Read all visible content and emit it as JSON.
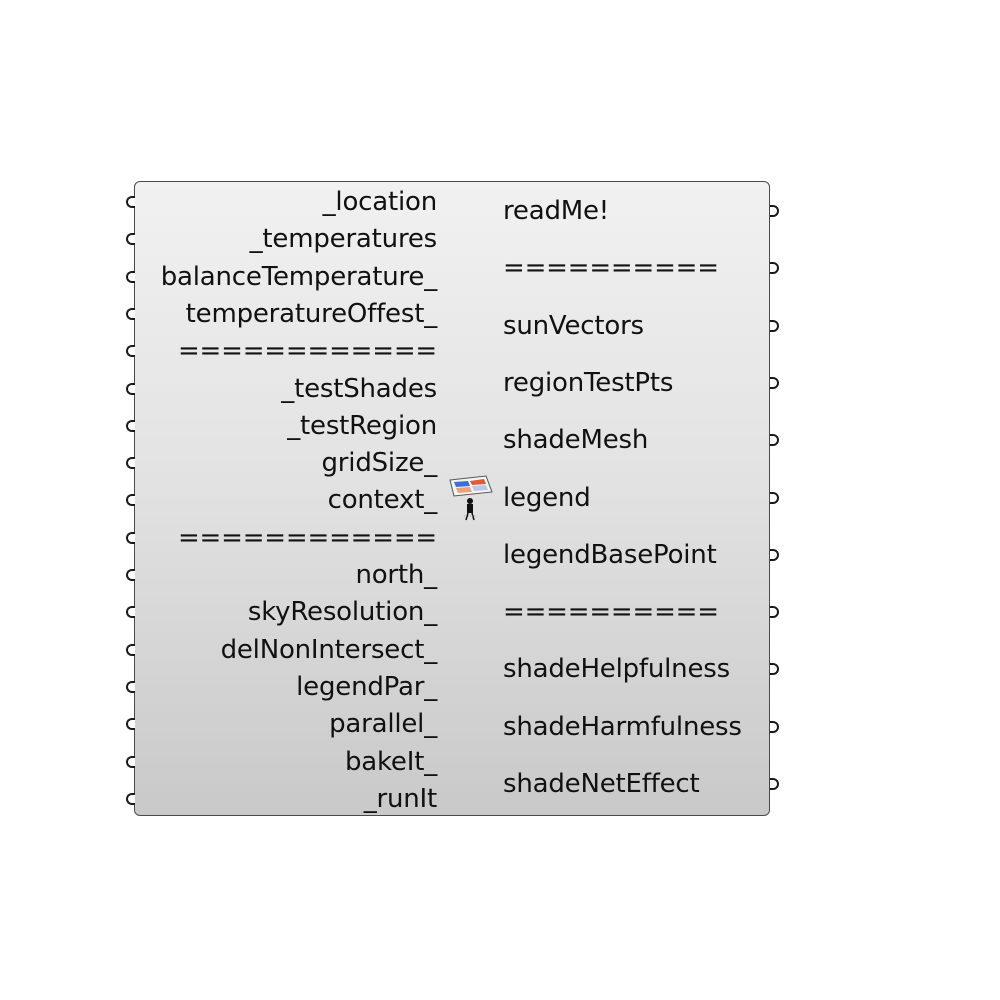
{
  "component": {
    "inputs": [
      {
        "label": "_location"
      },
      {
        "label": "_temperatures"
      },
      {
        "label": "balanceTemperature_"
      },
      {
        "label": "temperatureOffest_"
      },
      {
        "label": "============"
      },
      {
        "label": "_testShades"
      },
      {
        "label": "_testRegion"
      },
      {
        "label": "gridSize_"
      },
      {
        "label": "context_"
      },
      {
        "label": "============"
      },
      {
        "label": "north_"
      },
      {
        "label": "skyResolution_"
      },
      {
        "label": "delNonIntersect_"
      },
      {
        "label": "legendPar_"
      },
      {
        "label": "parallel_"
      },
      {
        "label": "bakeIt_"
      },
      {
        "label": "_runIt"
      }
    ],
    "outputs": [
      {
        "label": "readMe!"
      },
      {
        "label": "=========="
      },
      {
        "label": "sunVectors"
      },
      {
        "label": "regionTestPts"
      },
      {
        "label": "shadeMesh"
      },
      {
        "label": "legend"
      },
      {
        "label": "legendBasePoint"
      },
      {
        "label": "=========="
      },
      {
        "label": "shadeHelpfulness"
      },
      {
        "label": "shadeHarmfulness"
      },
      {
        "label": "shadeNetEffect"
      }
    ],
    "icon": "shade-benefit-evaluator-icon"
  },
  "colors": {
    "body_top": "#f1f1f1",
    "body_bottom": "#c9c9c9",
    "border": "#4a4a4a",
    "text": "#111111"
  }
}
